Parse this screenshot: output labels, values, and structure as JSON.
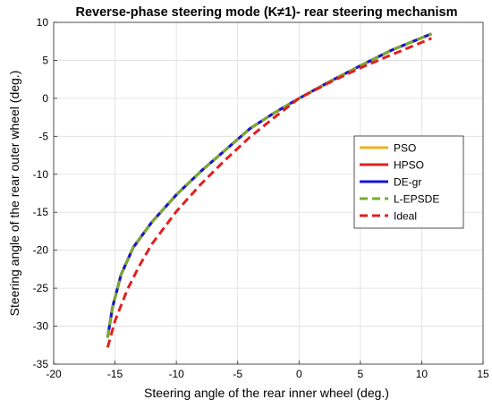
{
  "chart_data": {
    "type": "line",
    "title": "Reverse-phase steering mode (K≠1)- rear steering mechanism",
    "xlabel": "Steering angle of the rear inner wheel (deg.)",
    "ylabel": "Steering angle of the rear outer wheel (deg.)",
    "xlim": [
      -20,
      15
    ],
    "ylim": [
      -35,
      10
    ],
    "xticks": [
      -20,
      -15,
      -10,
      -5,
      0,
      5,
      10,
      15
    ],
    "yticks": [
      -35,
      -30,
      -25,
      -20,
      -15,
      -10,
      -5,
      0,
      5,
      10
    ],
    "grid": true,
    "legend": "right",
    "series": [
      {
        "name": "PSO",
        "color": "#EDB120",
        "dash": "solid",
        "x": [
          -15.6,
          -15.2,
          -14.5,
          -13.5,
          -12.0,
          -10.0,
          -8.0,
          -6.0,
          -4.0,
          -2.0,
          0.0,
          2.5,
          5.0,
          7.5,
          10.8
        ],
        "y": [
          -31.5,
          -27.5,
          -23.2,
          -19.6,
          -16.3,
          -12.7,
          -9.6,
          -6.8,
          -4.0,
          -1.9,
          0.0,
          2.2,
          4.3,
          6.3,
          8.5
        ]
      },
      {
        "name": "HPSO",
        "color": "#E02020",
        "dash": "solid",
        "x": [
          -15.6,
          -15.2,
          -14.5,
          -13.5,
          -12.0,
          -10.0,
          -8.0,
          -6.0,
          -4.0,
          -2.0,
          0.0,
          2.5,
          5.0,
          7.5,
          10.8
        ],
        "y": [
          -31.5,
          -27.5,
          -23.2,
          -19.6,
          -16.3,
          -12.7,
          -9.6,
          -6.8,
          -4.0,
          -1.9,
          0.0,
          2.2,
          4.3,
          6.3,
          8.5
        ]
      },
      {
        "name": "DE-gr",
        "color": "#1414D8",
        "dash": "solid",
        "x": [
          -15.6,
          -15.2,
          -14.5,
          -13.5,
          -12.0,
          -10.0,
          -8.0,
          -6.0,
          -4.0,
          -2.0,
          0.0,
          2.5,
          5.0,
          7.5,
          10.8
        ],
        "y": [
          -31.5,
          -27.5,
          -23.2,
          -19.6,
          -16.3,
          -12.7,
          -9.6,
          -6.8,
          -4.0,
          -1.9,
          0.0,
          2.2,
          4.3,
          6.3,
          8.5
        ]
      },
      {
        "name": "L-EPSDE",
        "color": "#77AC30",
        "dash": "dashed",
        "x": [
          -15.6,
          -15.2,
          -14.5,
          -13.5,
          -12.0,
          -10.0,
          -8.0,
          -6.0,
          -4.0,
          -2.0,
          0.0,
          2.5,
          5.0,
          7.5,
          10.8
        ],
        "y": [
          -31.5,
          -27.5,
          -23.2,
          -19.6,
          -16.3,
          -12.7,
          -9.6,
          -6.8,
          -4.0,
          -1.9,
          0.0,
          2.2,
          4.3,
          6.3,
          8.5
        ]
      },
      {
        "name": "Ideal",
        "color": "#E02020",
        "dash": "dashed",
        "x": [
          -15.6,
          -15.0,
          -14.0,
          -13.0,
          -12.0,
          -10.0,
          -8.0,
          -6.0,
          -4.0,
          -2.0,
          0.0,
          2.5,
          5.0,
          7.5,
          10.8
        ],
        "y": [
          -32.8,
          -29.3,
          -25.2,
          -22.0,
          -19.2,
          -14.9,
          -11.3,
          -8.1,
          -5.1,
          -2.5,
          0.0,
          2.1,
          4.0,
          5.7,
          7.9
        ]
      }
    ]
  }
}
